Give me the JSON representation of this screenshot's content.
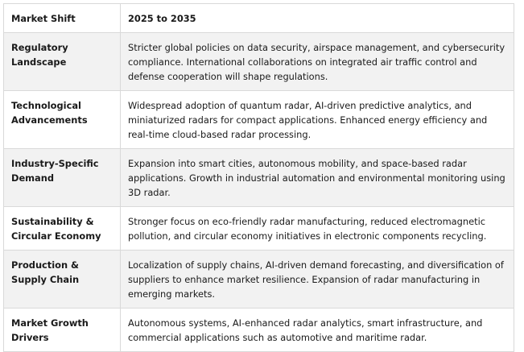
{
  "table": {
    "headers": [
      "Market Shift",
      "2025 to 2035"
    ],
    "rows": [
      {
        "label": "Regulatory Landscape",
        "value": "Stricter global policies on data security, airspace management, and cybersecurity compliance. International collaborations on integrated air traffic control and defense cooperation will shape regulations."
      },
      {
        "label": "Technological Advancements",
        "value": "Widespread adoption of quantum radar, AI-driven predictive analytics, and miniaturized radars for compact applications. Enhanced energy efficiency and real-time cloud-based radar processing."
      },
      {
        "label": "Industry-Specific Demand",
        "value": "Expansion into smart cities, autonomous mobility, and space-based radar applications. Growth in industrial automation and environmental monitoring using 3D radar."
      },
      {
        "label": "Sustainability & Circular Economy",
        "value": "Stronger focus on eco-friendly radar manufacturing, reduced electromagnetic pollution, and circular economy initiatives in electronic components recycling."
      },
      {
        "label": "Production & Supply Chain",
        "value": "Localization of supply chains, AI-driven demand forecasting, and diversification of suppliers to enhance market resilience. Expansion of radar manufacturing in emerging markets."
      },
      {
        "label": "Market Growth Drivers",
        "value": "Autonomous systems, AI-enhanced radar analytics, smart infrastructure, and commercial applications such as automotive and maritime radar."
      }
    ]
  }
}
